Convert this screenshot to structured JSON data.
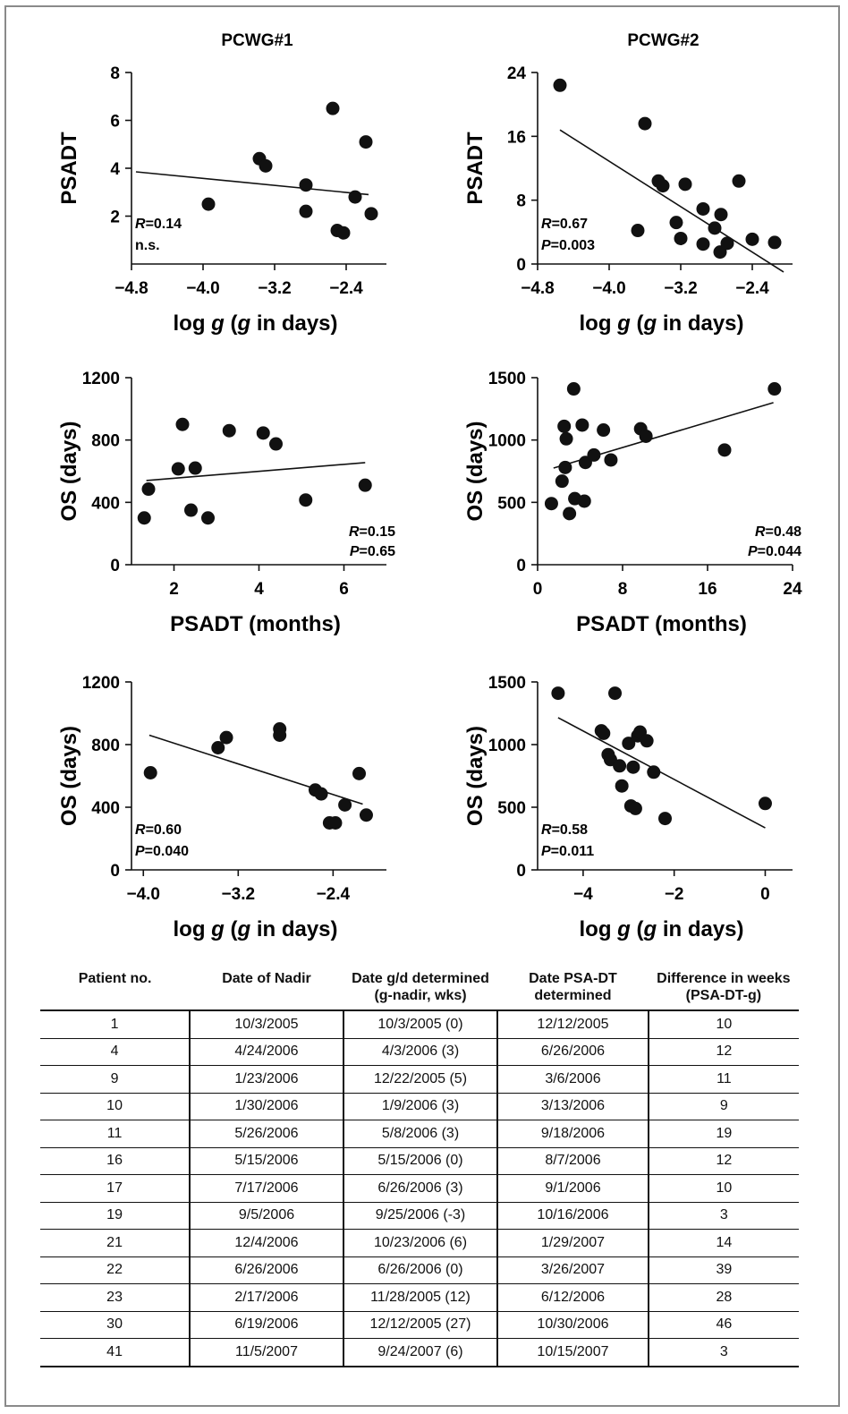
{
  "chart_data": [
    {
      "type": "scatter",
      "title": "PCWG#1",
      "xlabel": "log g (g in days)",
      "ylabel": "PSADT",
      "xlim": [
        -4.8,
        -1.95
      ],
      "ylim": [
        0,
        8
      ],
      "xticks": [
        -4.8,
        -4.0,
        -3.2,
        -2.4
      ],
      "yticks": [
        2,
        4,
        6,
        8
      ],
      "x": [
        -3.94,
        -3.37,
        -3.3,
        -2.85,
        -2.85,
        -2.55,
        -2.5,
        -2.43,
        -2.3,
        -2.18,
        -2.12
      ],
      "y": [
        2.5,
        4.4,
        4.1,
        3.3,
        2.2,
        6.5,
        1.4,
        1.3,
        2.8,
        5.1,
        2.1
      ],
      "trend": [
        [
          -4.75,
          3.85
        ],
        [
          -2.15,
          2.9
        ]
      ],
      "annotation": [
        "R=0.14",
        "n.s."
      ],
      "annotation_pos": "bottom-left",
      "grid": false
    },
    {
      "type": "scatter",
      "title": "PCWG#2",
      "xlabel": "log g (g in days)",
      "ylabel": "PSADT",
      "xlim": [
        -4.8,
        -1.95
      ],
      "ylim": [
        0,
        24
      ],
      "xticks": [
        -4.8,
        -4.0,
        -3.2,
        -2.4
      ],
      "yticks": [
        0,
        8,
        16,
        24
      ],
      "x": [
        -4.55,
        -3.6,
        -3.45,
        -3.15,
        -3.4,
        -3.68,
        -3.25,
        -3.2,
        -2.95,
        -2.95,
        -2.82,
        -2.55,
        -2.75,
        -2.76,
        -2.68,
        -2.4,
        -2.15
      ],
      "y": [
        22.4,
        17.6,
        10.4,
        10,
        9.8,
        4.2,
        5.2,
        3.2,
        6.9,
        2.5,
        4.5,
        10.4,
        6.2,
        1.5,
        2.6,
        3.1,
        2.7
      ],
      "trend": [
        [
          -4.55,
          16.8
        ],
        [
          -2.05,
          -1.0
        ]
      ],
      "annotation": [
        "R=0.67",
        "P=0.003"
      ],
      "annotation_pos": "bottom-left",
      "grid": false
    },
    {
      "type": "scatter",
      "xlabel": "PSADT (months)",
      "ylabel": "OS (days)",
      "xlim": [
        1,
        7
      ],
      "ylim": [
        0,
        1200
      ],
      "xticks": [
        2,
        4,
        6
      ],
      "yticks": [
        0,
        400,
        800,
        1200
      ],
      "x": [
        1.3,
        1.4,
        2.1,
        2.2,
        2.4,
        2.5,
        2.8,
        3.3,
        4.1,
        4.4,
        5.1,
        6.5
      ],
      "y": [
        300,
        485,
        615,
        900,
        350,
        620,
        300,
        860,
        845,
        775,
        415,
        510
      ],
      "trend": [
        [
          1.35,
          540
        ],
        [
          6.5,
          655
        ]
      ],
      "annotation": [
        "R=0.15",
        "P=0.65"
      ],
      "annotation_pos": "bottom-right",
      "grid": false
    },
    {
      "type": "scatter",
      "xlabel": "PSADT (months)",
      "ylabel": "OS (days)",
      "xlim": [
        0,
        24
      ],
      "ylim": [
        0,
        1500
      ],
      "xticks": [
        0,
        8,
        16,
        24
      ],
      "yticks": [
        0,
        500,
        1000,
        1500
      ],
      "x": [
        1.3,
        2.3,
        2.5,
        2.7,
        3.0,
        2.6,
        3.4,
        3.5,
        4.2,
        4.4,
        4.5,
        5.3,
        6.2,
        6.9,
        9.7,
        10.2,
        17.6,
        22.3
      ],
      "y": [
        490,
        670,
        1110,
        1010,
        410,
        780,
        1410,
        530,
        1120,
        510,
        820,
        880,
        1080,
        840,
        1090,
        1030,
        920,
        1410
      ],
      "trend": [
        [
          1.5,
          775
        ],
        [
          22.2,
          1300
        ]
      ],
      "annotation": [
        "R=0.48",
        "P=0.044"
      ],
      "annotation_pos": "bottom-right",
      "grid": false
    },
    {
      "type": "scatter",
      "xlabel": "log g (g in days)",
      "ylabel": "OS (days)",
      "xlim": [
        -4.1,
        -1.95
      ],
      "ylim": [
        0,
        1200
      ],
      "xticks": [
        -4.0,
        -3.2,
        -2.4
      ],
      "yticks": [
        0,
        400,
        800,
        1200
      ],
      "x": [
        -3.94,
        -3.37,
        -3.3,
        -2.85,
        -2.85,
        -2.55,
        -2.5,
        -2.43,
        -2.38,
        -2.3,
        -2.18,
        -2.12
      ],
      "y": [
        620,
        780,
        845,
        900,
        860,
        510,
        485,
        300,
        300,
        415,
        615,
        350
      ],
      "trend": [
        [
          -3.95,
          860
        ],
        [
          -2.15,
          420
        ]
      ],
      "annotation": [
        "R=0.60",
        "P=0.040"
      ],
      "annotation_pos": "bottom-left",
      "grid": false
    },
    {
      "type": "scatter",
      "xlabel": "log g (g in days)",
      "ylabel": "OS (days)",
      "xlim": [
        -5.0,
        0.6
      ],
      "ylim": [
        0,
        1500
      ],
      "xticks": [
        -4,
        -2,
        0
      ],
      "yticks": [
        0,
        500,
        1000,
        1500
      ],
      "x": [
        -4.55,
        -3.6,
        -3.55,
        -3.45,
        -3.4,
        -3.3,
        -3.2,
        -3.15,
        -3.0,
        -2.95,
        -2.9,
        -2.85,
        -2.8,
        -2.75,
        -2.6,
        -2.45,
        -2.2,
        0.0
      ],
      "y": [
        1410,
        1110,
        1090,
        920,
        880,
        1410,
        830,
        670,
        1010,
        510,
        820,
        490,
        1070,
        1100,
        1030,
        780,
        410,
        530
      ],
      "trend": [
        [
          -4.55,
          1215
        ],
        [
          0.0,
          335
        ]
      ],
      "annotation": [
        "R=0.58",
        "P=0.011"
      ],
      "annotation_pos": "bottom-left",
      "grid": false
    }
  ],
  "table": {
    "headers": [
      [
        "Patient no."
      ],
      [
        "Date of Nadir"
      ],
      [
        "Date g/d determined",
        "(g-nadir, wks)"
      ],
      [
        "Date PSA-DT",
        "determined"
      ],
      [
        "Difference in weeks",
        "(PSA-DT-g)"
      ]
    ],
    "rows": [
      [
        "1",
        "10/3/2005",
        "10/3/2005 (0)",
        "12/12/2005",
        "10"
      ],
      [
        "4",
        "4/24/2006",
        "4/3/2006 (3)",
        "6/26/2006",
        "12"
      ],
      [
        "9",
        "1/23/2006",
        "12/22/2005 (5)",
        "3/6/2006",
        "11"
      ],
      [
        "10",
        "1/30/2006",
        "1/9/2006 (3)",
        "3/13/2006",
        "9"
      ],
      [
        "11",
        "5/26/2006",
        "5/8/2006 (3)",
        "9/18/2006",
        "19"
      ],
      [
        "16",
        "5/15/2006",
        "5/15/2006 (0)",
        "8/7/2006",
        "12"
      ],
      [
        "17",
        "7/17/2006",
        "6/26/2006 (3)",
        "9/1/2006",
        "10"
      ],
      [
        "19",
        "9/5/2006",
        "9/25/2006 (-3)",
        "10/16/2006",
        "3"
      ],
      [
        "21",
        "12/4/2006",
        "10/23/2006 (6)",
        "1/29/2007",
        "14"
      ],
      [
        "22",
        "6/26/2006",
        "6/26/2006 (0)",
        "3/26/2007",
        "39"
      ],
      [
        "23",
        "2/17/2006",
        "11/28/2005 (12)",
        "6/12/2006",
        "28"
      ],
      [
        "30",
        "6/19/2006",
        "12/12/2005 (27)",
        "10/30/2006",
        "46"
      ],
      [
        "41",
        "11/5/2007",
        "9/24/2007 (6)",
        "10/15/2007",
        "3"
      ]
    ]
  }
}
